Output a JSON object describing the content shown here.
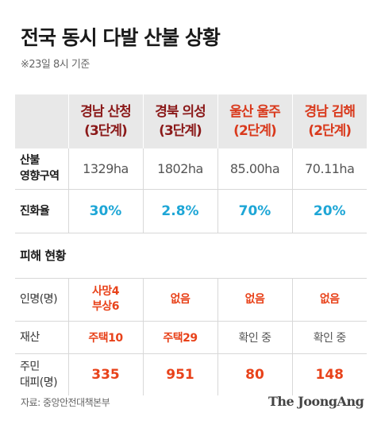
{
  "title": "전국 동시 다발 산불 상황",
  "subtitle": "※23일 8시 기준",
  "columns": [
    {
      "name": "경남 산청",
      "level": "(3단계)"
    },
    {
      "name": "경북 의성",
      "level": "(3단계)"
    },
    {
      "name": "울산 울주",
      "level": "(2단계)"
    },
    {
      "name": "경남 김해",
      "level": "(2단계)"
    }
  ],
  "rows": {
    "area": {
      "label_1": "산불",
      "label_2": "영향구역",
      "values": [
        "1329ha",
        "1802ha",
        "85.00ha",
        "70.11ha"
      ]
    },
    "containment": {
      "label": "진화율",
      "values": [
        "30%",
        "2.8%",
        "70%",
        "20%"
      ]
    },
    "damage_section": {
      "label": "피해 현황"
    },
    "casualties": {
      "label": "인명(명)",
      "values": [
        [
          "사망4",
          "부상6"
        ],
        [
          "없음"
        ],
        [
          "없음"
        ],
        [
          "없음"
        ]
      ]
    },
    "property": {
      "label": "재산",
      "values": [
        "주택10",
        "주택29",
        "확인 중",
        "확인 중"
      ]
    },
    "evacuees": {
      "label_1": "주민",
      "label_2": "대피(명)",
      "values": [
        "335",
        "951",
        "80",
        "148"
      ]
    }
  },
  "colors": {
    "header_bg": "#e8e8e8",
    "dark_red": "#8b1a1a",
    "red": "#d93a1d",
    "orange": "#e8421a",
    "blue": "#1ea6d6"
  },
  "source": "자료: 중앙안전대책본부",
  "brand": "The JoongAng"
}
